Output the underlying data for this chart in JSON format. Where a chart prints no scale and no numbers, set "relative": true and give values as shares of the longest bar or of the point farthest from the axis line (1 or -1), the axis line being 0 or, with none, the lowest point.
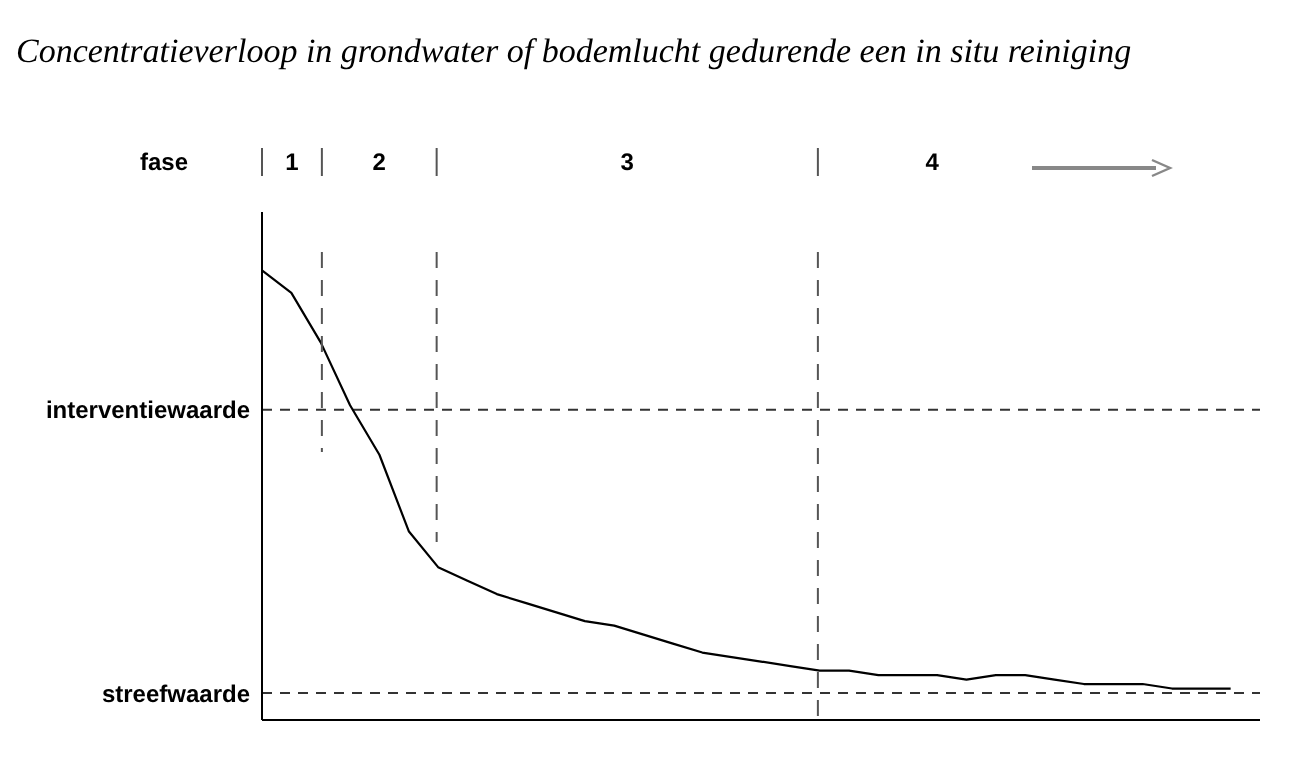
{
  "chart_data": {
    "type": "line",
    "title": "Concentratieverloop in grondwater of bodemlucht gedurende een in situ reiniging",
    "relative": true,
    "marker": "none",
    "line_style": "solid",
    "grid": false,
    "categories": [
      null,
      null,
      null,
      null,
      null,
      null,
      null,
      null,
      null,
      null,
      null,
      null,
      null,
      null,
      null,
      null,
      null,
      null,
      null,
      null,
      null,
      null,
      null,
      null,
      null,
      null,
      null,
      null,
      null,
      null,
      null,
      null,
      null,
      null
    ],
    "series": [
      {
        "color": "#000000",
        "values": [
          1,
          0.95,
          0.84,
          0.7,
          0.59,
          0.42,
          0.34,
          0.31,
          0.28,
          0.26,
          0.24,
          0.22,
          0.21,
          0.19,
          0.17,
          0.15,
          0.14,
          0.13,
          0.12,
          0.11,
          0.11,
          0.1,
          0.1,
          0.1,
          0.09,
          0.1,
          0.1,
          0.09,
          0.08,
          0.08,
          0.08,
          0.07,
          0.07,
          0.07
        ]
      }
    ],
    "ref_lines": [
      {
        "axis": "y",
        "value": 0.69,
        "label": "interventiewaarde",
        "line_style": "dashed"
      },
      {
        "axis": "y",
        "value": 0.06,
        "label": "streefwaarde",
        "line_style": "dashed"
      }
    ],
    "annotations": [
      "fase",
      "1",
      "2",
      "3",
      "4"
    ]
  }
}
